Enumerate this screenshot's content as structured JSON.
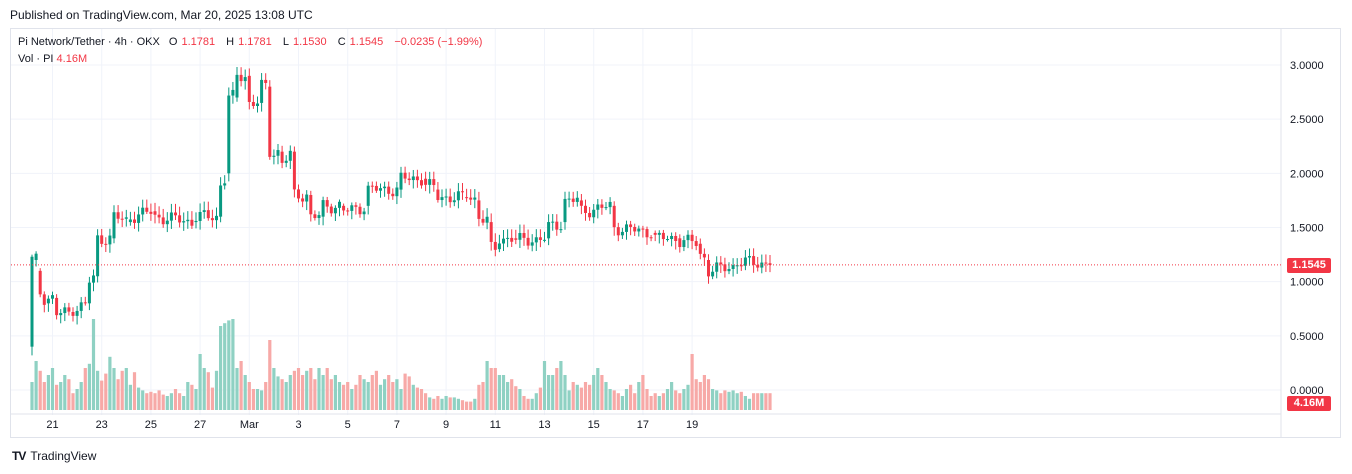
{
  "published": "Published on TradingView.com, Mar 20, 2025 13:08 UTC",
  "legend": {
    "symbol": "Pi Network/Tether · 4h · OKX",
    "o_label": "O",
    "o_value": "1.1781",
    "h_label": "H",
    "h_value": "1.1781",
    "l_label": "L",
    "l_value": "1.1530",
    "c_label": "C",
    "c_value": "1.1545",
    "change": "−0.0235 (−1.99%)",
    "vol_label": "Vol · PI",
    "vol_value": "4.16M"
  },
  "footer": {
    "brand": "TradingView",
    "logo": "TV"
  },
  "colors": {
    "up": "#089981",
    "down": "#f23645",
    "vol_up": "#8fd1c3",
    "vol_down": "#f7a9a7",
    "grid": "#f0f3fa"
  },
  "chart_data": {
    "type": "candlestick",
    "ylim": [
      0.0,
      3.0
    ],
    "y_ticks": [
      "3.0000",
      "2.5000",
      "2.0000",
      "1.5000",
      "1.0000",
      "0.5000",
      "0.0000"
    ],
    "y_tick_values": [
      3.0,
      2.5,
      2.0,
      1.5,
      1.0,
      0.5,
      0.0
    ],
    "x_ticks": [
      "21",
      "23",
      "25",
      "27",
      "Mar",
      "3",
      "5",
      "7",
      "9",
      "11",
      "13",
      "15",
      "17",
      "19"
    ],
    "last_price": "1.1545",
    "last_price_value": 1.1545,
    "last_volume": "4.16M",
    "candles_per_day": 6,
    "anchors": [
      [
        0,
        0.4,
        1.2
      ],
      [
        1,
        1.2,
        1.2
      ],
      [
        2,
        1.1,
        0.9
      ],
      [
        4,
        0.8,
        0.85
      ],
      [
        6,
        0.85,
        0.7
      ],
      [
        10,
        0.72,
        0.75
      ],
      [
        14,
        0.8,
        1.0
      ],
      [
        16,
        1.05,
        1.4
      ],
      [
        20,
        1.4,
        1.6
      ],
      [
        24,
        1.55,
        1.6
      ],
      [
        30,
        1.65,
        1.6
      ],
      [
        40,
        1.55,
        1.6
      ],
      [
        46,
        1.6,
        1.9
      ],
      [
        48,
        2.0,
        2.7
      ],
      [
        50,
        2.7,
        2.9
      ],
      [
        53,
        2.9,
        2.65
      ],
      [
        56,
        2.65,
        2.8
      ],
      [
        58,
        2.8,
        2.2
      ],
      [
        61,
        2.2,
        2.1
      ],
      [
        64,
        2.2,
        1.8
      ],
      [
        68,
        1.8,
        1.6
      ],
      [
        71,
        1.6,
        1.7
      ],
      [
        76,
        1.7,
        1.65
      ],
      [
        82,
        1.7,
        1.85
      ],
      [
        90,
        1.85,
        1.95
      ],
      [
        96,
        1.95,
        1.9
      ],
      [
        99,
        1.85,
        1.78
      ],
      [
        106,
        1.78,
        1.8
      ],
      [
        109,
        1.75,
        1.6
      ],
      [
        112,
        1.55,
        1.3
      ],
      [
        114,
        1.3,
        1.4
      ],
      [
        118,
        1.4,
        1.38
      ],
      [
        126,
        1.4,
        1.5
      ],
      [
        130,
        1.55,
        1.75
      ],
      [
        134,
        1.75,
        1.65
      ],
      [
        142,
        1.7,
        1.5
      ],
      [
        152,
        1.45,
        1.4
      ],
      [
        158,
        1.4,
        1.38
      ],
      [
        163,
        1.35,
        1.25
      ],
      [
        165,
        1.2,
        1.1
      ],
      [
        172,
        1.15,
        1.18
      ],
      [
        180,
        1.17,
        1.1545
      ]
    ],
    "volumes": [
      0.2,
      0.35,
      0.28,
      0.2,
      0.25,
      0.3,
      0.18,
      0.2,
      0.25,
      0.22,
      0.12,
      0.15,
      0.2,
      0.3,
      0.33,
      0.65,
      0.28,
      0.21,
      0.26,
      0.38,
      0.3,
      0.22,
      0.28,
      0.3,
      0.18,
      0.27,
      0.16,
      0.14,
      0.12,
      0.13,
      0.12,
      0.14,
      0.11,
      0.1,
      0.12,
      0.15,
      0.12,
      0.1,
      0.2,
      0.18,
      0.15,
      0.4,
      0.3,
      0.27,
      0.16,
      0.28,
      0.6,
      0.62,
      0.64,
      0.65,
      0.3,
      0.35,
      0.25,
      0.2,
      0.15,
      0.15,
      0.14,
      0.2,
      0.5,
      0.3,
      0.24,
      0.22,
      0.2,
      0.25,
      0.28,
      0.3,
      0.25,
      0.28,
      0.3,
      0.22,
      0.3,
      0.25,
      0.3,
      0.22,
      0.25,
      0.2,
      0.18,
      0.2,
      0.15,
      0.18,
      0.25,
      0.22,
      0.2,
      0.25,
      0.28,
      0.18,
      0.22,
      0.25,
      0.2,
      0.22,
      0.15,
      0.26,
      0.24,
      0.18,
      0.16,
      0.15,
      0.12,
      0.09,
      0.08,
      0.1,
      0.08,
      0.1,
      0.09,
      0.09,
      0.08,
      0.07,
      0.06,
      0.06,
      0.08,
      0.18,
      0.2,
      0.35,
      0.3,
      0.3,
      0.25,
      0.25,
      0.2,
      0.22,
      0.17,
      0.15,
      0.1,
      0.08,
      0.08,
      0.12,
      0.16,
      0.35,
      0.25,
      0.25,
      0.3,
      0.35,
      0.25,
      0.14,
      0.2,
      0.18,
      0.16,
      0.2,
      0.18,
      0.25,
      0.3,
      0.25,
      0.2,
      0.15,
      0.14,
      0.12,
      0.1,
      0.15,
      0.18,
      0.12,
      0.2,
      0.25,
      0.15,
      0.1,
      0.12,
      0.1,
      0.12,
      0.15,
      0.2,
      0.14,
      0.12,
      0.15,
      0.18,
      0.4,
      0.22,
      0.2,
      0.25,
      0.22,
      0.15,
      0.14,
      0.12,
      0.14,
      0.13,
      0.14,
      0.12,
      0.13,
      0.1,
      0.08
    ]
  }
}
